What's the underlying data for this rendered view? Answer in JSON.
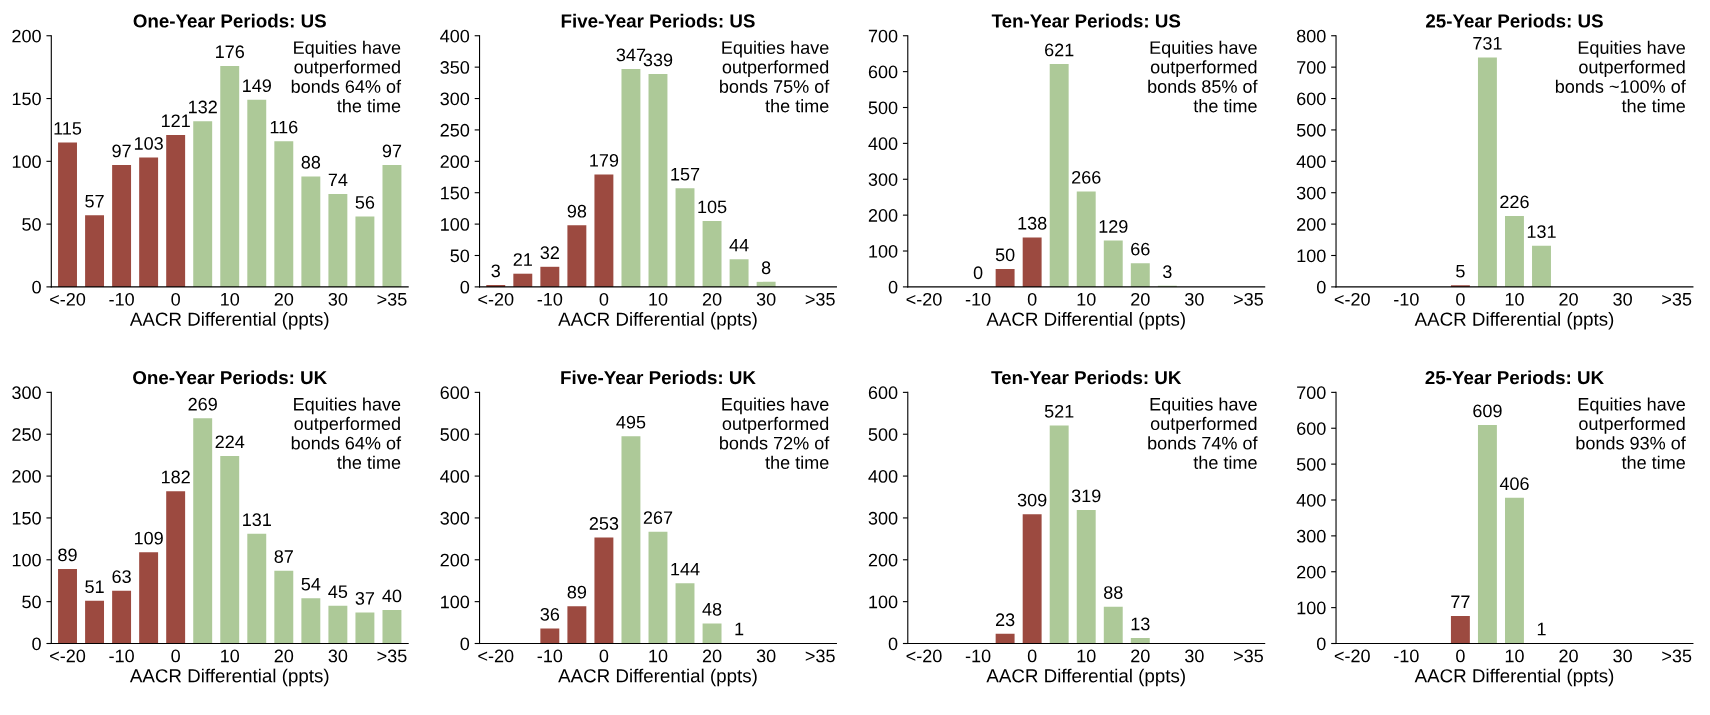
{
  "chart_data": [
    {
      "type": "bar",
      "title": "One-Year Periods: US",
      "xlabel": "AACR Differential (ppts)",
      "categories": [
        "<-20",
        null,
        "-10",
        null,
        "0",
        null,
        "10",
        null,
        "20",
        null,
        "30",
        null,
        ">35"
      ],
      "values": [
        115,
        57,
        97,
        103,
        121,
        132,
        176,
        149,
        116,
        88,
        74,
        56,
        97
      ],
      "colors": [
        "#9c4a40",
        "#9c4a40",
        "#9c4a40",
        "#9c4a40",
        "#9c4a40",
        "#adc998",
        "#adc998",
        "#adc998",
        "#adc998",
        "#adc998",
        "#adc998",
        "#adc998",
        "#adc998"
      ],
      "ylim": [
        0,
        200
      ],
      "yticks": [
        0,
        50,
        100,
        150,
        200
      ],
      "data_labels": true,
      "annotations": [
        "Equities have\noutperformed\nbonds 64% of\nthe time"
      ]
    },
    {
      "type": "bar",
      "title": "Five-Year Periods: US",
      "xlabel": "AACR Differential (ppts)",
      "categories": [
        "<-20",
        null,
        "-10",
        null,
        "0",
        null,
        "10",
        null,
        "20",
        null,
        "30",
        null,
        ">35"
      ],
      "values": [
        3,
        21,
        32,
        98,
        179,
        347,
        339,
        157,
        105,
        44,
        8,
        null,
        null
      ],
      "colors": [
        "#9c4a40",
        "#9c4a40",
        "#9c4a40",
        "#9c4a40",
        "#9c4a40",
        "#adc998",
        "#adc998",
        "#adc998",
        "#adc998",
        "#adc998",
        "#adc998",
        "#adc998",
        "#adc998"
      ],
      "ylim": [
        0,
        400
      ],
      "yticks": [
        0,
        50,
        100,
        150,
        200,
        250,
        300,
        350,
        400
      ],
      "data_labels": true,
      "annotations": [
        "Equities have\noutperformed\nbonds 75% of\nthe time"
      ]
    },
    {
      "type": "bar",
      "title": "Ten-Year Periods: US",
      "xlabel": "AACR Differential (ppts)",
      "categories": [
        "<-20",
        null,
        "-10",
        null,
        "0",
        null,
        "10",
        null,
        "20",
        null,
        "30",
        null,
        ">35"
      ],
      "values": [
        null,
        null,
        0,
        50,
        138,
        621,
        266,
        129,
        66,
        3,
        null,
        null,
        null
      ],
      "colors": [
        "#9c4a40",
        "#9c4a40",
        "#9c4a40",
        "#9c4a40",
        "#9c4a40",
        "#adc998",
        "#adc998",
        "#adc998",
        "#adc998",
        "#adc998",
        "#adc998",
        "#adc998",
        "#adc998"
      ],
      "ylim": [
        0,
        700
      ],
      "yticks": [
        0,
        100,
        200,
        300,
        400,
        500,
        600,
        700
      ],
      "data_labels": true,
      "annotations": [
        "Equities have\noutperformed\nbonds 85% of\nthe time"
      ]
    },
    {
      "type": "bar",
      "title": "25-Year Periods: US",
      "xlabel": "AACR Differential (ppts)",
      "categories": [
        "<-20",
        null,
        "-10",
        null,
        "0",
        null,
        "10",
        null,
        "20",
        null,
        "30",
        null,
        ">35"
      ],
      "values": [
        null,
        null,
        null,
        null,
        5,
        731,
        226,
        131,
        null,
        null,
        null,
        null,
        null
      ],
      "colors": [
        "#9c4a40",
        "#9c4a40",
        "#9c4a40",
        "#9c4a40",
        "#9c4a40",
        "#adc998",
        "#adc998",
        "#adc998",
        "#adc998",
        "#adc998",
        "#adc998",
        "#adc998",
        "#adc998"
      ],
      "ylim": [
        0,
        800
      ],
      "yticks": [
        0,
        100,
        200,
        300,
        400,
        500,
        600,
        700,
        800
      ],
      "data_labels": true,
      "annotations": [
        "Equities have\noutperformed\nbonds ~100% of\nthe time"
      ]
    },
    {
      "type": "bar",
      "title": "One-Year Periods: UK",
      "xlabel": "AACR Differential (ppts)",
      "categories": [
        "<-20",
        null,
        "-10",
        null,
        "0",
        null,
        "10",
        null,
        "20",
        null,
        "30",
        null,
        ">35"
      ],
      "values": [
        89,
        51,
        63,
        109,
        182,
        269,
        224,
        131,
        87,
        54,
        45,
        37,
        40
      ],
      "colors": [
        "#9c4a40",
        "#9c4a40",
        "#9c4a40",
        "#9c4a40",
        "#9c4a40",
        "#adc998",
        "#adc998",
        "#adc998",
        "#adc998",
        "#adc998",
        "#adc998",
        "#adc998",
        "#adc998"
      ],
      "ylim": [
        0,
        300
      ],
      "yticks": [
        0,
        50,
        100,
        150,
        200,
        250,
        300
      ],
      "data_labels": true,
      "annotations": [
        "Equities have\noutperformed\nbonds 64% of\nthe time"
      ]
    },
    {
      "type": "bar",
      "title": "Five-Year Periods: UK",
      "xlabel": "AACR Differential (ppts)",
      "categories": [
        "<-20",
        null,
        "-10",
        null,
        "0",
        null,
        "10",
        null,
        "20",
        null,
        "30",
        null,
        ">35"
      ],
      "values": [
        null,
        null,
        36,
        89,
        253,
        495,
        267,
        144,
        48,
        1,
        null,
        null,
        null
      ],
      "colors": [
        "#9c4a40",
        "#9c4a40",
        "#9c4a40",
        "#9c4a40",
        "#9c4a40",
        "#adc998",
        "#adc998",
        "#adc998",
        "#adc998",
        "#adc998",
        "#adc998",
        "#adc998",
        "#adc998"
      ],
      "ylim": [
        0,
        600
      ],
      "yticks": [
        0,
        100,
        200,
        300,
        400,
        500,
        600
      ],
      "data_labels": true,
      "annotations": [
        "Equities have\noutperformed\nbonds 72% of\nthe time"
      ]
    },
    {
      "type": "bar",
      "title": "Ten-Year Periods: UK",
      "xlabel": "AACR Differential (ppts)",
      "categories": [
        "<-20",
        null,
        "-10",
        null,
        "0",
        null,
        "10",
        null,
        "20",
        null,
        "30",
        null,
        ">35"
      ],
      "values": [
        null,
        null,
        null,
        23,
        309,
        521,
        319,
        88,
        13,
        null,
        null,
        null,
        null
      ],
      "colors": [
        "#9c4a40",
        "#9c4a40",
        "#9c4a40",
        "#9c4a40",
        "#9c4a40",
        "#adc998",
        "#adc998",
        "#adc998",
        "#adc998",
        "#adc998",
        "#adc998",
        "#adc998",
        "#adc998"
      ],
      "ylim": [
        0,
        600
      ],
      "yticks": [
        0,
        100,
        200,
        300,
        400,
        500,
        600
      ],
      "data_labels": true,
      "annotations": [
        "Equities have\noutperformed\nbonds 74% of\nthe time"
      ]
    },
    {
      "type": "bar",
      "title": "25-Year Periods: UK",
      "xlabel": "AACR Differential (ppts)",
      "categories": [
        "<-20",
        null,
        "-10",
        null,
        "0",
        null,
        "10",
        null,
        "20",
        null,
        "30",
        null,
        ">35"
      ],
      "values": [
        null,
        null,
        null,
        null,
        77,
        609,
        406,
        1,
        null,
        null,
        null,
        null,
        null
      ],
      "colors": [
        "#9c4a40",
        "#9c4a40",
        "#9c4a40",
        "#9c4a40",
        "#9c4a40",
        "#adc998",
        "#adc998",
        "#adc998",
        "#adc998",
        "#adc998",
        "#adc998",
        "#adc998",
        "#adc998"
      ],
      "ylim": [
        0,
        700
      ],
      "yticks": [
        0,
        100,
        200,
        300,
        400,
        500,
        600,
        700
      ],
      "data_labels": true,
      "annotations": [
        "Equities have\noutperformed\nbonds 93% of\nthe time"
      ]
    }
  ]
}
